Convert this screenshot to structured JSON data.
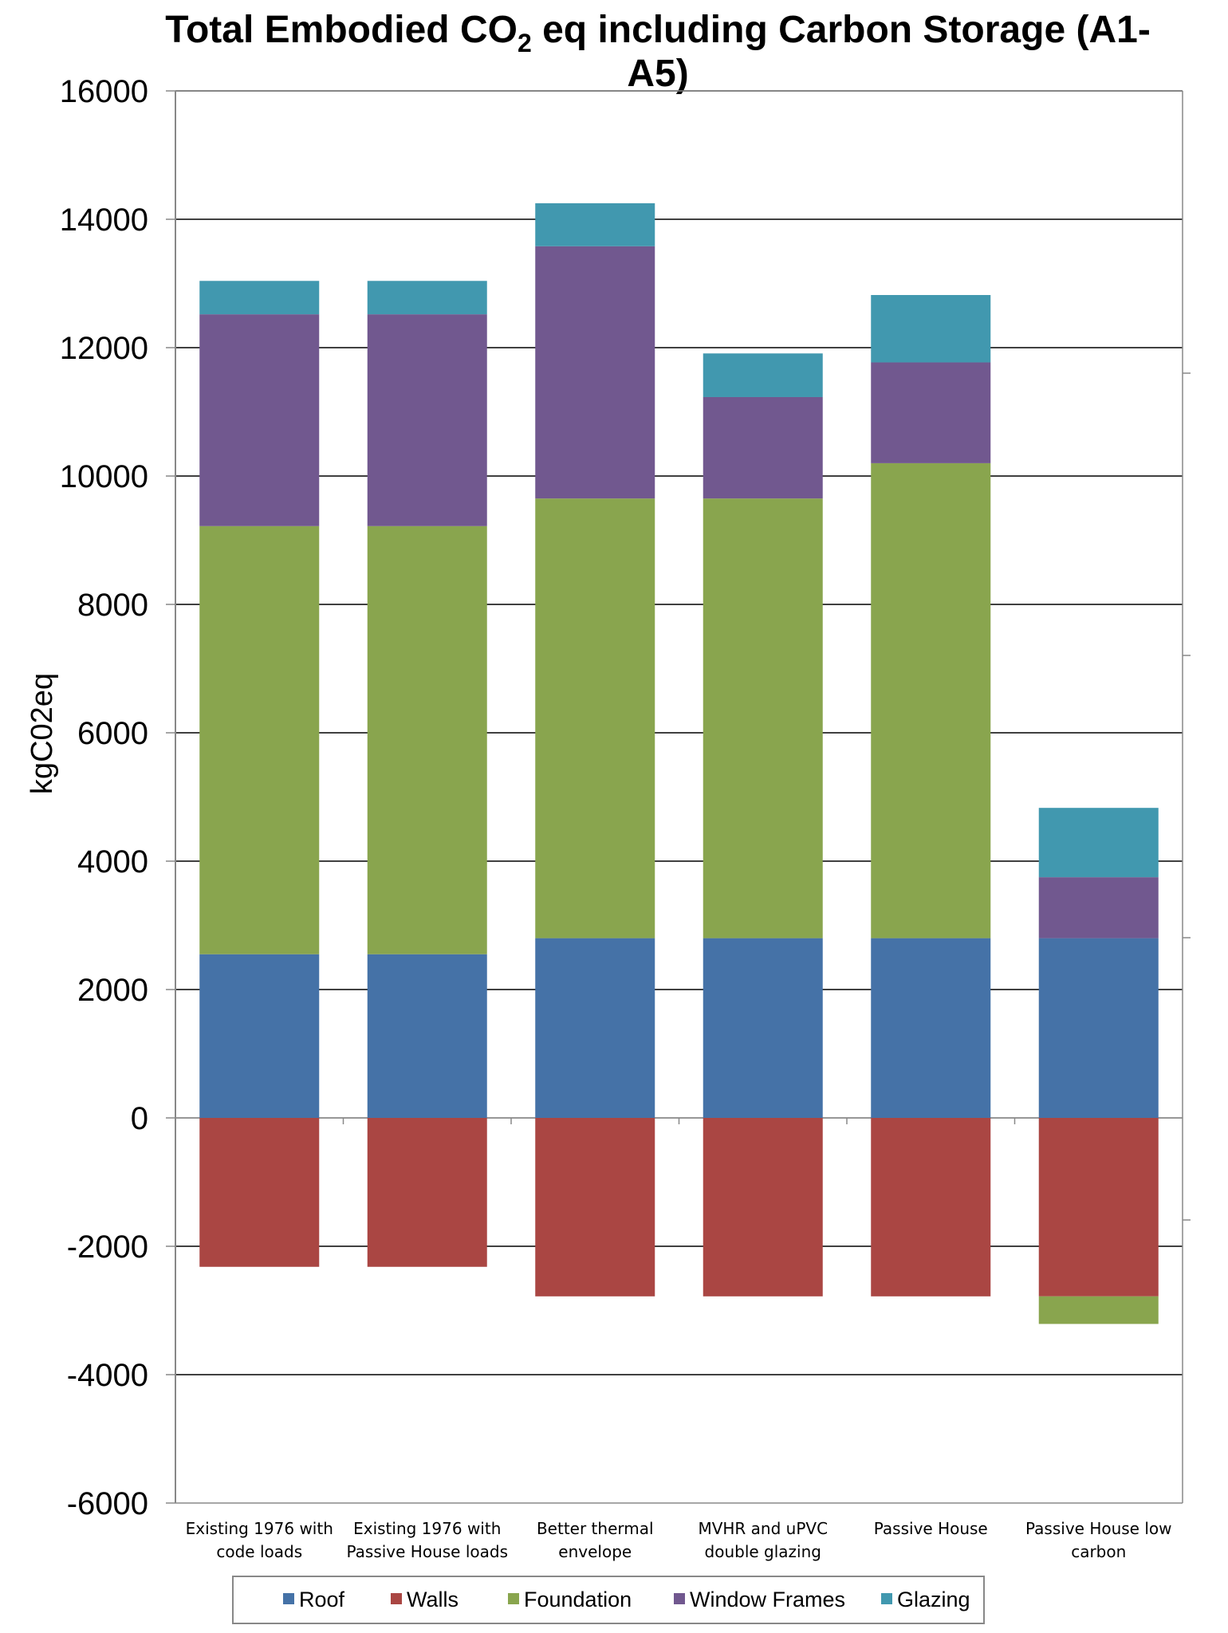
{
  "chart_data": {
    "type": "bar",
    "stacked": true,
    "title_main": "Total Embodied CO",
    "title_sub": "2",
    "title_rest": " eq including Carbon Storage (A1-",
    "title_line2": "A5)",
    "xlabel": "",
    "ylabel": "kgC02eq",
    "ylim": [
      -6000,
      16000
    ],
    "yticks": [
      16000,
      14000,
      12000,
      10000,
      8000,
      6000,
      4000,
      2000,
      0,
      -2000,
      -4000,
      -6000
    ],
    "grid": true,
    "legend_position": "bottom",
    "categories": [
      [
        "Existing 1976 with",
        "code loads"
      ],
      [
        "Existing 1976 with",
        "Passive House loads"
      ],
      [
        "Better thermal",
        "envelope"
      ],
      [
        "MVHR and uPVC",
        "double glazing"
      ],
      [
        "Passive House"
      ],
      [
        "Passive House low",
        "carbon"
      ]
    ],
    "series": [
      {
        "name": "Roof",
        "color": "#4572a7",
        "values": [
          2550,
          2550,
          2800,
          2800,
          2800,
          2800
        ]
      },
      {
        "name": "Walls",
        "color": "#aa4643",
        "values": [
          -2320,
          -2320,
          -2780,
          -2780,
          -2780,
          -2780
        ]
      },
      {
        "name": "Foundation",
        "color": "#89a54e",
        "values": [
          6670,
          6670,
          6850,
          6850,
          7400,
          -430
        ]
      },
      {
        "name": "Window Frames",
        "color": "#71588f",
        "values": [
          3300,
          3300,
          3930,
          1580,
          1570,
          950
        ]
      },
      {
        "name": "Glazing",
        "color": "#4198af",
        "values": [
          520,
          520,
          670,
          680,
          1050,
          1080
        ]
      }
    ]
  }
}
